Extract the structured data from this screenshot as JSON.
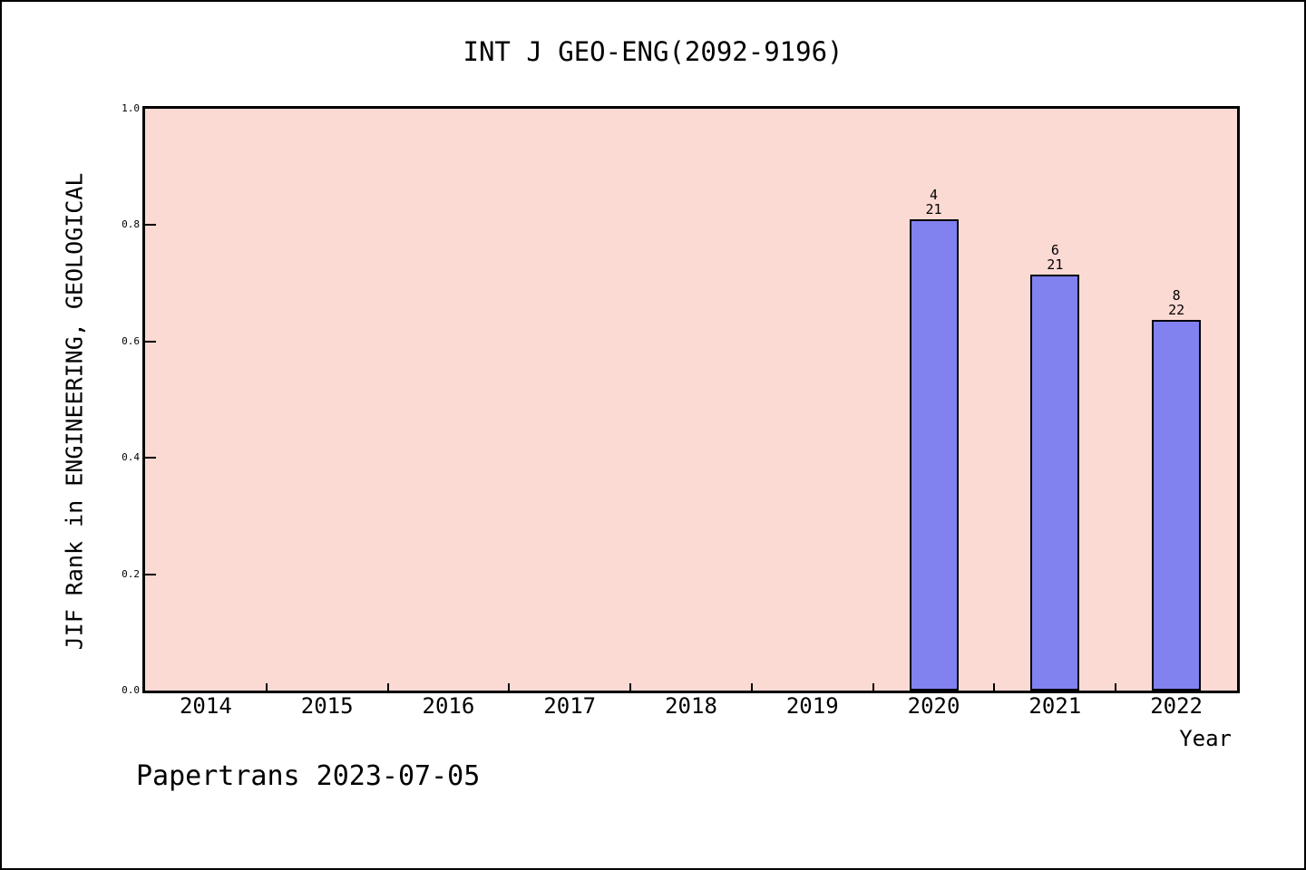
{
  "title": "INT J GEO-ENG(2092-9196)",
  "footer": "Papertrans 2023-07-05",
  "chart_data": {
    "type": "bar",
    "title": "INT J GEO-ENG(2092-9196)",
    "xlabel": "Year",
    "ylabel": "JIF Rank in ENGINEERING, GEOLOGICAL",
    "categories": [
      "2014",
      "2015",
      "2016",
      "2017",
      "2018",
      "2019",
      "2020",
      "2021",
      "2022"
    ],
    "yticks": [
      "0.0",
      "0.2",
      "0.4",
      "0.6",
      "0.8",
      "1.0"
    ],
    "ylim": [
      0,
      1
    ],
    "grid": false,
    "legend": null,
    "bars": [
      {
        "category": "2020",
        "value": 0.8095,
        "label_rank": "4",
        "label_total": "21"
      },
      {
        "category": "2021",
        "value": 0.7143,
        "label_rank": "6",
        "label_total": "21"
      },
      {
        "category": "2022",
        "value": 0.6364,
        "label_rank": "8",
        "label_total": "22"
      }
    ],
    "colors": {
      "plot_background": "#FCDAD4",
      "bar_fill": "#8181F0",
      "bar_border": "#000000",
      "axis": "#000000",
      "text": "#000000",
      "page_background": "#FFFFFF"
    }
  }
}
